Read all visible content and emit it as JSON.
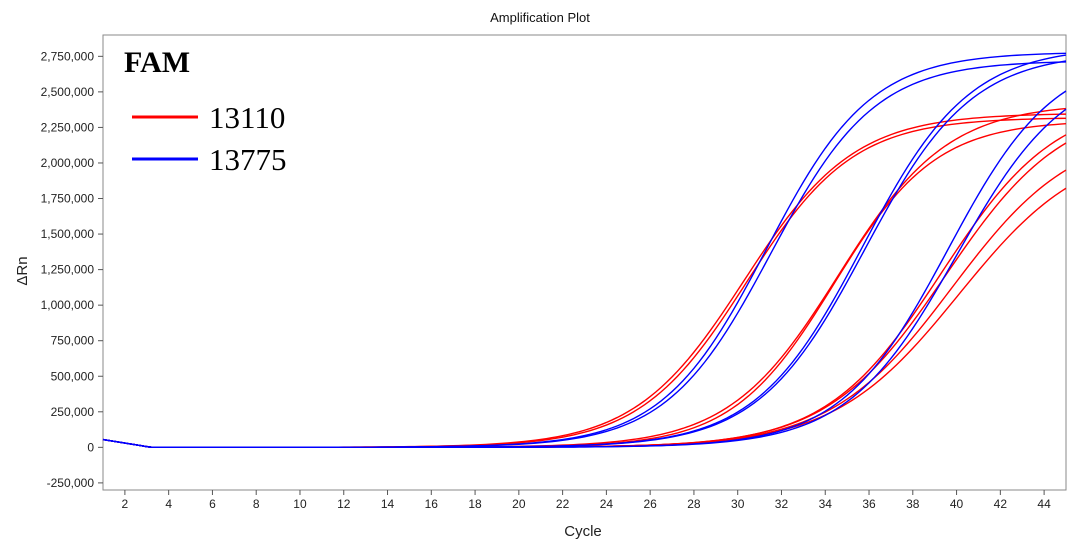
{
  "chart_data": {
    "type": "line",
    "title": "Amplification Plot",
    "xlabel": "Cycle",
    "ylabel": "ΔRn",
    "xlim": [
      1,
      45
    ],
    "ylim": [
      -300000,
      2900000
    ],
    "x_ticks": [
      2,
      4,
      6,
      8,
      10,
      12,
      14,
      16,
      18,
      20,
      22,
      24,
      26,
      28,
      30,
      32,
      34,
      36,
      38,
      40,
      42,
      44
    ],
    "y_ticks": [
      -250000,
      0,
      250000,
      500000,
      750000,
      1000000,
      1250000,
      1500000,
      1750000,
      2000000,
      2250000,
      2500000,
      2750000
    ],
    "y_tick_labels": [
      "-250,000",
      "0",
      "250,000",
      "500,000",
      "750,000",
      "1,000,000",
      "1,250,000",
      "1,500,000",
      "1,750,000",
      "2,000,000",
      "2,250,000",
      "2,500,000",
      "2,750,000"
    ],
    "grid": true,
    "legend": {
      "title": "FAM",
      "placement": "top-left",
      "entries": [
        {
          "label": "13110",
          "color": "#ff0000"
        },
        {
          "label": "13775",
          "color": "#0000ff"
        }
      ]
    },
    "series": [
      {
        "group": "13110",
        "color": "#ff0000",
        "curve": {
          "base": 0,
          "top": 2350000,
          "mid": 30.3,
          "k": 0.4
        }
      },
      {
        "group": "13110",
        "color": "#ff0000",
        "curve": {
          "base": 0,
          "top": 2320000,
          "mid": 30.4,
          "k": 0.41
        }
      },
      {
        "group": "13110",
        "color": "#ff0000",
        "curve": {
          "base": 0,
          "top": 2420000,
          "mid": 34.6,
          "k": 0.4
        }
      },
      {
        "group": "13110",
        "color": "#ff0000",
        "curve": {
          "base": 0,
          "top": 2300000,
          "mid": 34.4,
          "k": 0.43
        }
      },
      {
        "group": "13110",
        "color": "#ff0000",
        "curve": {
          "base": 0,
          "top": 2450000,
          "mid": 39.3,
          "k": 0.38
        }
      },
      {
        "group": "13110",
        "color": "#ff0000",
        "curve": {
          "base": 0,
          "top": 2420000,
          "mid": 39.5,
          "k": 0.37
        }
      },
      {
        "group": "13110",
        "color": "#ff0000",
        "curve": {
          "base": 0,
          "top": 2250000,
          "mid": 39.8,
          "k": 0.36
        }
      },
      {
        "group": "13110",
        "color": "#ff0000",
        "curve": {
          "base": 0,
          "top": 2150000,
          "mid": 40.1,
          "k": 0.35
        }
      },
      {
        "group": "13775",
        "color": "#0000ff",
        "curve": {
          "base": 0,
          "top": 2780000,
          "mid": 31.3,
          "k": 0.42
        }
      },
      {
        "group": "13775",
        "color": "#0000ff",
        "curve": {
          "base": 0,
          "top": 2720000,
          "mid": 31.5,
          "k": 0.42
        }
      },
      {
        "group": "13775",
        "color": "#0000ff",
        "curve": {
          "base": 0,
          "top": 2820000,
          "mid": 35.7,
          "k": 0.41
        }
      },
      {
        "group": "13775",
        "color": "#0000ff",
        "curve": {
          "base": 0,
          "top": 2780000,
          "mid": 35.8,
          "k": 0.41
        }
      },
      {
        "group": "13775",
        "color": "#0000ff",
        "curve": {
          "base": 0,
          "top": 2780000,
          "mid": 39.6,
          "k": 0.41
        }
      },
      {
        "group": "13775",
        "color": "#0000ff",
        "curve": {
          "base": 0,
          "top": 2700000,
          "mid": 40.0,
          "k": 0.4
        }
      }
    ]
  }
}
